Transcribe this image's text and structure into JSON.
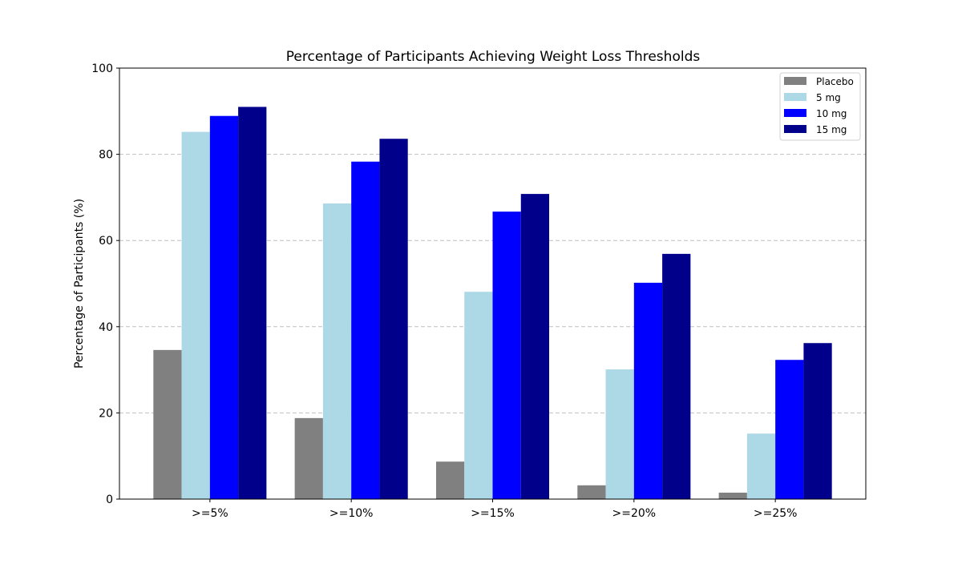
{
  "chart_data": {
    "type": "bar",
    "title": "Percentage of Participants Achieving Weight Loss Thresholds",
    "xlabel": "",
    "ylabel": "Percentage of Participants (%)",
    "ylim": [
      0,
      100
    ],
    "yticks": [
      0,
      20,
      40,
      60,
      80,
      100
    ],
    "grid": "y-dashed",
    "legend_position": "top-right",
    "categories": [
      ">=5%",
      ">=10%",
      ">=15%",
      ">=20%",
      ">=25%"
    ],
    "series": [
      {
        "name": "Placebo",
        "color": "#808080",
        "values": [
          34.6,
          18.8,
          8.7,
          3.2,
          1.5
        ]
      },
      {
        "name": "5 mg",
        "color": "#add8e6",
        "values": [
          85.2,
          68.6,
          48.1,
          30.1,
          15.2
        ]
      },
      {
        "name": "10 mg",
        "color": "#0000ff",
        "values": [
          88.9,
          78.3,
          66.7,
          50.2,
          32.3
        ]
      },
      {
        "name": "15 mg",
        "color": "#00008b",
        "values": [
          91.0,
          83.6,
          70.8,
          56.9,
          36.2
        ]
      }
    ]
  }
}
